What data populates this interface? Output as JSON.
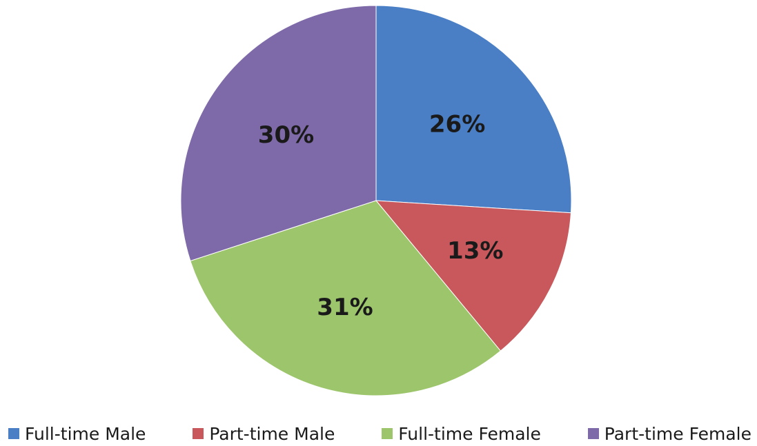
{
  "chart_data": {
    "type": "pie",
    "title": "",
    "legend_position": "bottom",
    "slices": [
      {
        "name": "Full-time Male",
        "value": 26,
        "label": "26%",
        "color": "#4a7fc6"
      },
      {
        "name": "Part-time Male",
        "value": 13,
        "label": "13%",
        "color": "#c8585c"
      },
      {
        "name": "Full-time Female",
        "value": 31,
        "label": "31%",
        "color": "#9dc56b"
      },
      {
        "name": "Part-time Female",
        "value": 30,
        "label": "30%",
        "color": "#7e6aa8"
      }
    ]
  }
}
